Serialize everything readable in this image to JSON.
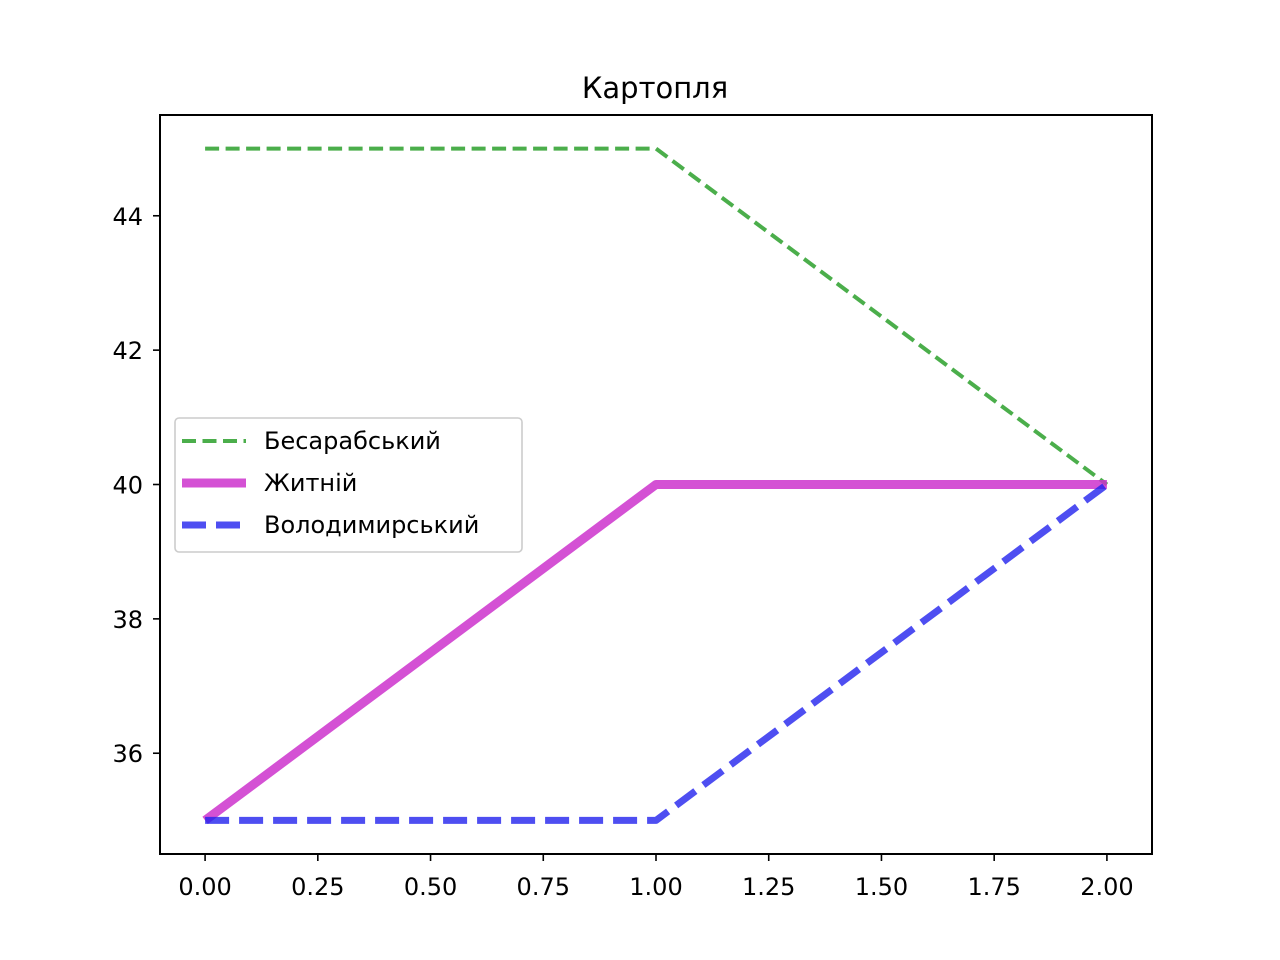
{
  "chart_data": {
    "type": "line",
    "title": "Картопля",
    "xlabel": "",
    "ylabel": "",
    "xlim": [
      -0.1,
      2.1
    ],
    "ylim": [
      34.5,
      45.5
    ],
    "xticks": [
      "0.00",
      "0.25",
      "0.50",
      "0.75",
      "1.00",
      "1.25",
      "1.50",
      "1.75",
      "2.00"
    ],
    "yticks": [
      "36",
      "38",
      "40",
      "42",
      "44"
    ],
    "grid": false,
    "legend_position": "center-left",
    "x": [
      0,
      1,
      2
    ],
    "series": [
      {
        "name": "Бесарабський",
        "values": [
          45,
          45,
          40
        ],
        "color": "#2ca02c",
        "line_style": "dashed"
      },
      {
        "name": "Житній",
        "values": [
          35,
          40,
          40
        ],
        "color": "#cc33cc",
        "line_style": "solid"
      },
      {
        "name": "Володимирський",
        "values": [
          35,
          35,
          40
        ],
        "color": "#2222ee",
        "line_style": "dashed"
      }
    ]
  }
}
